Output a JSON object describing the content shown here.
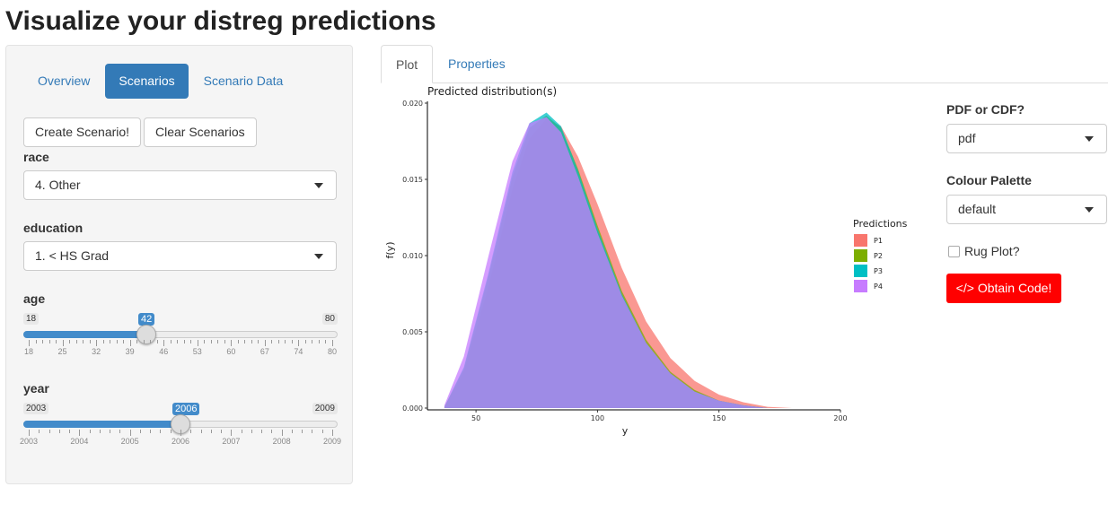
{
  "page": {
    "title": "Visualize your distreg predictions"
  },
  "sidebar": {
    "tabs": [
      {
        "label": "Overview",
        "active": false
      },
      {
        "label": "Scenarios",
        "active": true
      },
      {
        "label": "Scenario Data",
        "active": false
      }
    ],
    "create_button": "Create Scenario!",
    "clear_button": "Clear Scenarios",
    "race": {
      "label": "race",
      "value": "4. Other"
    },
    "education": {
      "label": "education",
      "value": "1. < HS Grad"
    },
    "age": {
      "label": "age",
      "min": 18,
      "max": 80,
      "value": 42,
      "ticks": [
        "18",
        "25",
        "32",
        "39",
        "46",
        "53",
        "60",
        "67",
        "74",
        "80"
      ]
    },
    "year": {
      "label": "year",
      "min": 2003,
      "max": 2009,
      "value": 2006,
      "ticks": [
        "2003",
        "2004",
        "2005",
        "2006",
        "2007",
        "2008",
        "2009"
      ]
    }
  },
  "main_tabs": [
    {
      "label": "Plot",
      "active": true
    },
    {
      "label": "Properties",
      "active": false
    }
  ],
  "controls": {
    "pdf_cdf": {
      "label": "PDF or CDF?",
      "value": "pdf"
    },
    "palette": {
      "label": "Colour Palette",
      "value": "default"
    },
    "rug": {
      "label": "Rug Plot?",
      "checked": false
    },
    "code_button": "Obtain Code!",
    "code_icon": "code-icon",
    "accent_color": "#ff0000"
  },
  "chart_data": {
    "type": "area",
    "title": "Predicted distribution(s)",
    "xlabel": "y",
    "ylabel": "f(y)",
    "xlim": [
      30,
      200
    ],
    "ylim": [
      0,
      0.02
    ],
    "xticks": [
      "50",
      "100",
      "150",
      "200"
    ],
    "yticks": [
      "0.000",
      "0.005",
      "0.010",
      "0.015",
      "0.020"
    ],
    "legend_title": "Predictions",
    "legend_placement": "right",
    "series": [
      {
        "name": "P1",
        "color": "#F8766D",
        "x": [
          37,
          45,
          55,
          65,
          72,
          79,
          85,
          92,
          100,
          110,
          120,
          130,
          140,
          150,
          160,
          170,
          180,
          190
        ],
        "y": [
          0.0002,
          0.0025,
          0.008,
          0.0145,
          0.0178,
          0.0191,
          0.0186,
          0.0166,
          0.0135,
          0.0093,
          0.0058,
          0.0034,
          0.0019,
          0.001,
          0.0005,
          0.0002,
          0.0001,
          0.0
        ]
      },
      {
        "name": "P2",
        "color": "#7CAE00",
        "x": [
          37,
          45,
          55,
          65,
          72,
          79,
          85,
          92,
          100,
          110,
          120,
          130,
          140,
          150,
          160,
          170,
          180,
          190
        ],
        "y": [
          0.0002,
          0.0027,
          0.0087,
          0.0153,
          0.0185,
          0.0193,
          0.0185,
          0.0158,
          0.0121,
          0.0078,
          0.0046,
          0.0025,
          0.0013,
          0.0006,
          0.0003,
          0.0001,
          0.0,
          0.0
        ]
      },
      {
        "name": "P3",
        "color": "#00BFC4",
        "x": [
          37,
          45,
          55,
          65,
          72,
          79,
          85,
          92,
          100,
          110,
          120,
          130,
          140,
          150,
          160,
          170,
          180,
          190
        ],
        "y": [
          0.0002,
          0.0028,
          0.0089,
          0.0156,
          0.0188,
          0.0195,
          0.0186,
          0.0157,
          0.0119,
          0.0076,
          0.0044,
          0.0024,
          0.0012,
          0.0006,
          0.0003,
          0.0001,
          0.0,
          0.0
        ]
      },
      {
        "name": "P4",
        "color": "#C77CFF",
        "x": [
          37,
          45,
          55,
          65,
          72,
          79,
          85,
          92,
          100,
          110,
          120,
          130,
          140,
          150,
          160,
          170,
          180,
          190
        ],
        "y": [
          0.0003,
          0.0035,
          0.01,
          0.0163,
          0.0188,
          0.0192,
          0.0182,
          0.0153,
          0.0116,
          0.0075,
          0.0044,
          0.0024,
          0.0012,
          0.0006,
          0.0003,
          0.0001,
          0.0,
          0.0
        ]
      }
    ]
  }
}
